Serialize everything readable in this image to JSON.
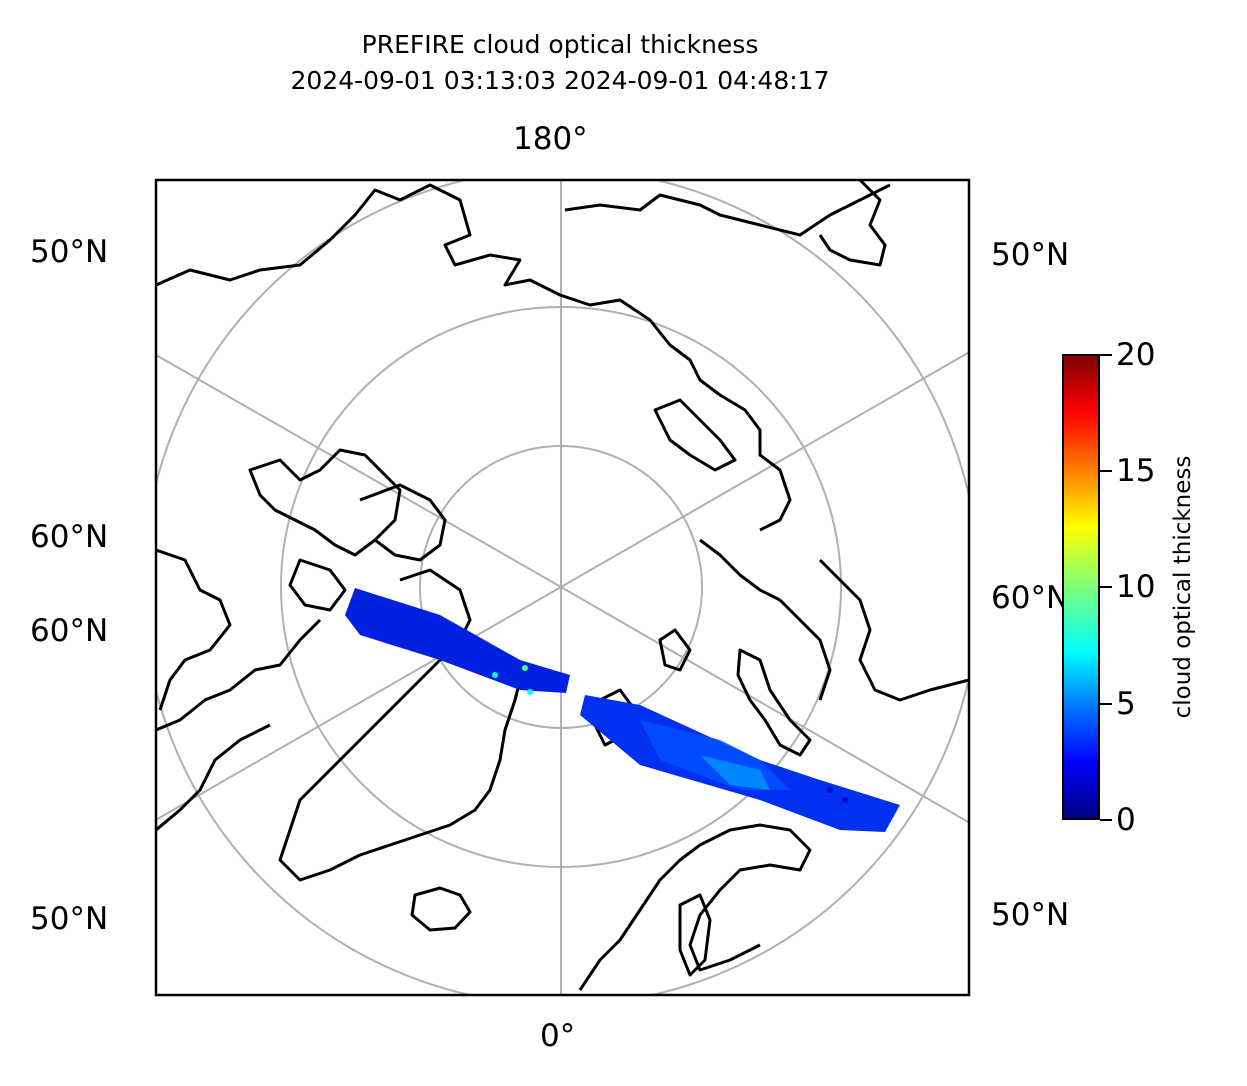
{
  "title": {
    "line1": "PREFIRE cloud optical thickness",
    "line2": "2024-09-01 03:13:03 2024-09-01 04:48:17"
  },
  "longitude_labels": {
    "top": "180°",
    "bottom": "0°"
  },
  "latitude_labels": {
    "left_upper": "50°N",
    "left_mid_upper": "60°N",
    "left_mid_lower": "60°N",
    "left_lower": "50°N",
    "right_upper": "50°N",
    "right_mid": "60°N",
    "right_lower": "50°N"
  },
  "colorbar": {
    "label": "cloud optical thickness",
    "ticks": [
      "0",
      "5",
      "10",
      "15",
      "20"
    ],
    "range": [
      0,
      20
    ],
    "colormap": "jet"
  },
  "map": {
    "projection": "north polar stereographic",
    "graticule_color": "#b0b0b0",
    "coastline_color": "#000000",
    "gridlines": true
  },
  "swath": {
    "description_colors": [
      "#0000cc",
      "#0022ee",
      "#0040ff",
      "#00c8ff"
    ],
    "dominant_value_range": [
      0,
      7
    ]
  }
}
